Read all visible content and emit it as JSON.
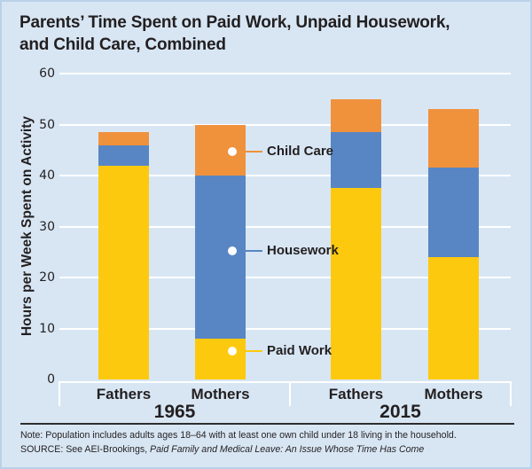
{
  "title": {
    "line1": "Parents’ Time Spent on Paid Work, Unpaid Housework,",
    "line2": "and Child Care, Combined"
  },
  "chart_data": {
    "type": "bar",
    "stacked": true,
    "title": "Parents’ Time Spent on Paid Work, Unpaid Housework, and Child Care, Combined",
    "ylabel": "Hours per Week Spent on Activity",
    "ylim": [
      0,
      60
    ],
    "yticks": [
      0,
      10,
      20,
      30,
      40,
      50,
      60
    ],
    "grid": "horizontal-white",
    "groups": [
      "1965",
      "2015"
    ],
    "categories": [
      "Fathers",
      "Mothers",
      "Fathers",
      "Mothers"
    ],
    "category_group_index": [
      0,
      0,
      1,
      1
    ],
    "series": [
      {
        "name": "Paid Work",
        "color": "#fdc90e",
        "values": [
          42,
          8,
          37.5,
          24
        ]
      },
      {
        "name": "Housework",
        "color": "#5886c5",
        "values": [
          4,
          32,
          11,
          17.5
        ]
      },
      {
        "name": "Child Care",
        "color": "#f0913c",
        "values": [
          2.5,
          10,
          6.5,
          11.5
        ]
      }
    ],
    "totals": [
      48.5,
      50,
      55,
      53
    ],
    "annotations": [
      {
        "label": "Child Care",
        "color": "#f0913c",
        "anchor_value": 44.7
      },
      {
        "label": "Housework",
        "color": "#5886c5",
        "anchor_value": 25.2
      },
      {
        "label": "Paid Work",
        "color": "#fdc90e",
        "anchor_value": 5.6
      }
    ],
    "legend_position": "callouts-on-1965-mothers-bar"
  },
  "footer": {
    "note": "Note: Population includes adults ages 18–64 with at least one own child under 18 living in the household.",
    "source_prefix": "SOURCE: See AEI-Brookings, ",
    "source_title": "Paid Family and Medical Leave: An Issue Whose Time Has Come"
  },
  "colors": {
    "background": "#d8e6f4",
    "border": "#b9d2e8",
    "gridline": "#ffffff",
    "text": "#231f20",
    "rule": "#2e2c2d"
  }
}
